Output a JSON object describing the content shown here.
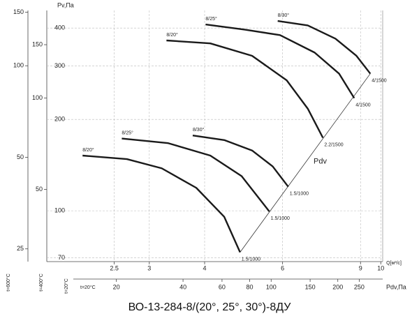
{
  "chart_data": {
    "type": "line",
    "title": "ВО-13-284-8/(20°, 25°, 30°)-8ДУ",
    "x_label": "Q[м³/с]",
    "y_label": "Pv,Па",
    "log_x": true,
    "log_y": true,
    "grid": true,
    "xlim": [
      1.76,
      10.1
    ],
    "ylim": [
      68,
      457
    ],
    "xticks": [
      2.5,
      3,
      4,
      6,
      9,
      10
    ],
    "yticks": [
      70,
      100,
      200,
      300,
      400
    ],
    "x_scale_label": "t=20°C",
    "series": [
      {
        "name": "8/20°",
        "color": "#1a1a1a",
        "end_label": "1.5/1000",
        "x": [
          2.12,
          2.67,
          3.2,
          3.83,
          4.43,
          4.81
        ],
        "values": [
          152,
          148,
          138,
          119,
          95.5,
          73
        ]
      },
      {
        "name": "8/25°",
        "color": "#1a1a1a",
        "end_label": "1.5/1000",
        "x": [
          2.6,
          3.31,
          4.12,
          4.85,
          5.6
        ],
        "values": [
          173,
          167,
          152,
          130,
          99.5
        ]
      },
      {
        "name": "8/30°",
        "color": "#1a1a1a",
        "end_label": "1.5/1000",
        "x": [
          3.76,
          4.43,
          5.12,
          5.7,
          6.18
        ],
        "values": [
          177,
          171,
          158,
          140,
          120
        ]
      },
      {
        "name": "8/20°",
        "color": "#1a1a1a",
        "end_label": "2.2/1500",
        "x": [
          3.28,
          4.12,
          5.12,
          6.13,
          6.84,
          7.4
        ],
        "values": [
          364,
          356,
          324,
          269,
          217,
          174
        ]
      },
      {
        "name": "8/25°",
        "color": "#1a1a1a",
        "end_label": "4/1500",
        "x": [
          4.02,
          4.94,
          5.92,
          7.09,
          8.05,
          8.71
        ],
        "values": [
          411,
          395,
          379,
          332,
          283,
          235
        ]
      },
      {
        "name": "8/30°",
        "color": "#1a1a1a",
        "end_label": "4/1500",
        "x": [
          5.85,
          6.84,
          7.9,
          8.81,
          9.47
        ],
        "values": [
          422,
          408,
          369,
          324,
          283
        ]
      }
    ],
    "annotations": [
      {
        "text": "Pdv",
        "x": [
          4.81,
          9.47
        ],
        "y": [
          73,
          283
        ]
      }
    ],
    "left_scales": [
      {
        "label": "t=600°C",
        "ylim": [
          22.7,
          152
        ],
        "yticks": [
          25,
          50,
          100,
          150
        ]
      },
      {
        "label": "t=400°C",
        "ylim": [
          28.9,
          194.5
        ],
        "yticks": [
          50,
          100,
          150
        ]
      }
    ],
    "bottom_scale": {
      "label": "t=20°C",
      "axis_label": "Pdv,Па",
      "xlim": [
        9.7,
        319
      ],
      "xticks": [
        20,
        40,
        60,
        80,
        100,
        150,
        200,
        250
      ]
    }
  }
}
